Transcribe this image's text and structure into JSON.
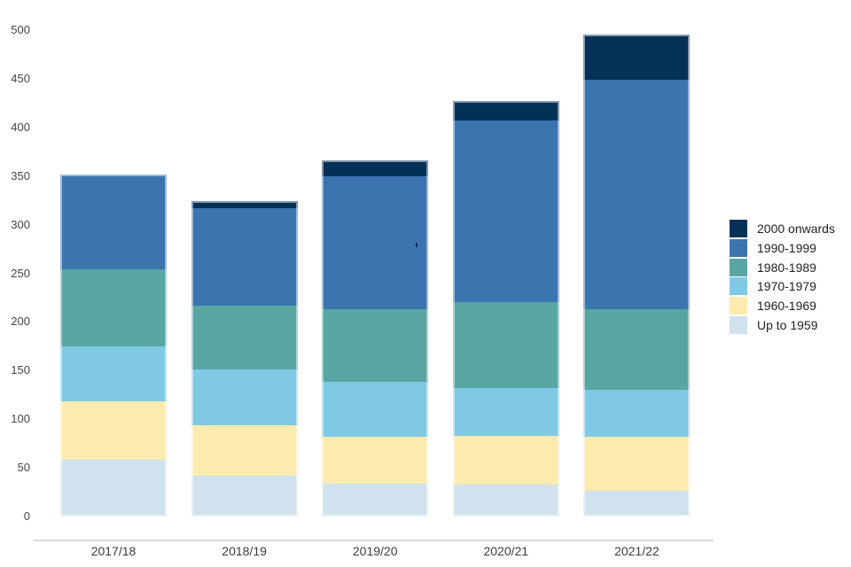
{
  "chart_data": {
    "type": "bar",
    "stacked": true,
    "categories": [
      "2017/18",
      "2018/19",
      "2019/20",
      "2020/21",
      "2021/22"
    ],
    "series": [
      {
        "name": "Up to 1959",
        "color": "#cfe2ed",
        "values": [
          58,
          42,
          34,
          33,
          26
        ]
      },
      {
        "name": "1960-1969",
        "color": "#fdeaaf",
        "values": [
          60,
          52,
          48,
          50,
          56
        ]
      },
      {
        "name": "1970-1979",
        "color": "#80c9e4",
        "values": [
          57,
          57,
          56,
          49,
          48
        ]
      },
      {
        "name": "1980-1989",
        "color": "#59a5a1",
        "values": [
          79,
          66,
          75,
          88,
          83
        ]
      },
      {
        "name": "1990-1999",
        "color": "#3b74af",
        "values": [
          98,
          100,
          137,
          187,
          236
        ]
      },
      {
        "name": "2000 onwards",
        "color": "#053157",
        "values": [
          0,
          7,
          16,
          20,
          46
        ]
      }
    ],
    "totals": [
      352,
      324,
      366,
      427,
      495
    ],
    "legend_order_top_to_bottom": [
      "2000 onwards",
      "1990-1999",
      "1980-1989",
      "1970-1979",
      "1960-1969",
      "Up to 1959"
    ],
    "legend_position": "right",
    "y_ticks": [
      0,
      50,
      100,
      150,
      200,
      250,
      300,
      350,
      400,
      450,
      500
    ],
    "ylim": [
      0,
      500
    ],
    "xlabel": "",
    "ylabel": "",
    "grid": false,
    "axis_line_color": "#d9d9d9",
    "tick_label_color": "#454545",
    "bar_edge_color": "rgba(255,255,255,0.5)"
  }
}
